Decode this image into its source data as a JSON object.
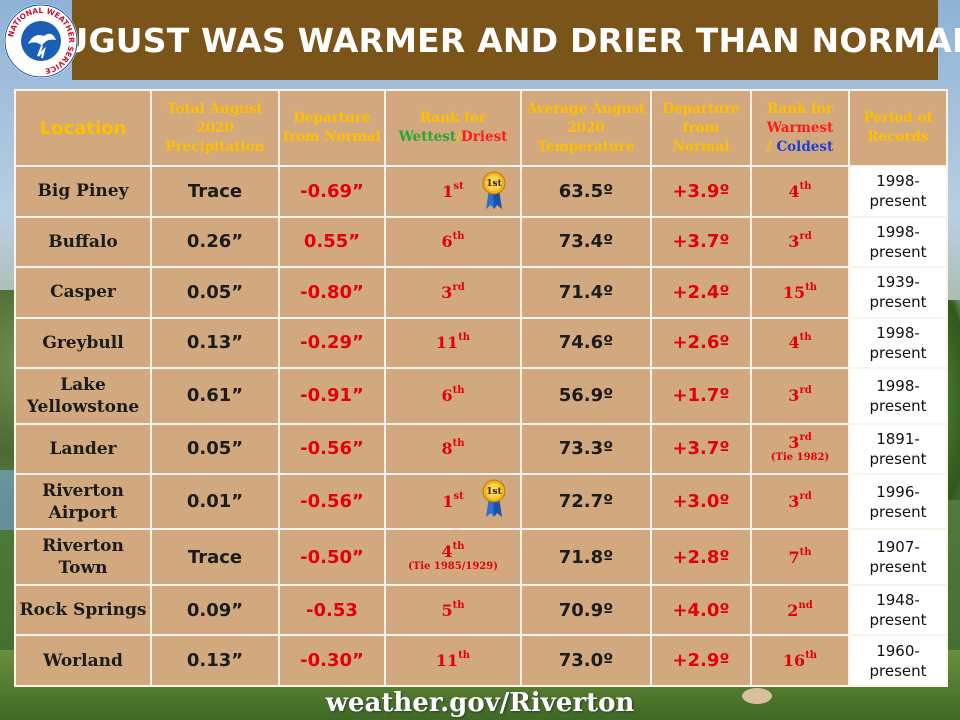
{
  "title": "AUGUST WAS WARMER AND DRIER THAN NORMAL",
  "logo_text": "NATIONAL WEATHER SERVICE",
  "footer": "weather.gov/Riverton",
  "headers": {
    "location": "Location",
    "total_precip": "Total August 2020 Precipitation",
    "departure": "Departure from Normal",
    "rank_wet_prefix": "Rank for",
    "rank_wet_wettest": "Wettest",
    "rank_wet_sep": "/",
    "rank_wet_driest": "Driest",
    "avg_temp": "Average August 2020 Temperature",
    "temp_departure": "Departure from Normal",
    "rank_warm_prefix": "Rank for",
    "rank_warm_warmest": "Warmest",
    "rank_warm_sep": "/",
    "rank_warm_coldest": "Coldest",
    "period": "Period of Records"
  },
  "rows": [
    {
      "location": "Big Piney",
      "precip": "Trace",
      "departure": "-0.69”",
      "rank_wet": "1",
      "rank_wet_suffix": "st",
      "rank_wet_note": "",
      "ribbon": true,
      "ribbon_label": "1st",
      "temp": "63.5º",
      "temp_departure": "+3.9º",
      "rank_warm": "4",
      "rank_warm_suffix": "th",
      "rank_warm_note": "",
      "period_1": "1998-",
      "period_2": "present"
    },
    {
      "location": "Buffalo",
      "precip": "0.26”",
      "departure": "0.55”",
      "rank_wet": "6",
      "rank_wet_suffix": "th",
      "rank_wet_note": "",
      "ribbon": false,
      "ribbon_label": "",
      "temp": "73.4º",
      "temp_departure": "+3.7º",
      "rank_warm": "3",
      "rank_warm_suffix": "rd",
      "rank_warm_note": "",
      "period_1": "1998-",
      "period_2": "present"
    },
    {
      "location": "Casper",
      "precip": "0.05”",
      "departure": "-0.80”",
      "rank_wet": "3",
      "rank_wet_suffix": "rd",
      "rank_wet_note": "",
      "ribbon": false,
      "ribbon_label": "",
      "temp": "71.4º",
      "temp_departure": "+2.4º",
      "rank_warm": "15",
      "rank_warm_suffix": "th",
      "rank_warm_note": "",
      "period_1": "1939-",
      "period_2": "present"
    },
    {
      "location": "Greybull",
      "precip": "0.13”",
      "departure": "-0.29”",
      "rank_wet": "11",
      "rank_wet_suffix": "th",
      "rank_wet_note": "",
      "ribbon": false,
      "ribbon_label": "",
      "temp": "74.6º",
      "temp_departure": "+2.6º",
      "rank_warm": "4",
      "rank_warm_suffix": "th",
      "rank_warm_note": "",
      "period_1": "1998-",
      "period_2": "present"
    },
    {
      "location": "Lake Yellowstone",
      "precip": "0.61”",
      "departure": "-0.91”",
      "rank_wet": "6",
      "rank_wet_suffix": "th",
      "rank_wet_note": "",
      "ribbon": false,
      "ribbon_label": "",
      "temp": "56.9º",
      "temp_departure": "+1.7º",
      "rank_warm": "3",
      "rank_warm_suffix": "rd",
      "rank_warm_note": "",
      "period_1": "1998-",
      "period_2": "present"
    },
    {
      "location": "Lander",
      "precip": "0.05”",
      "departure": "-0.56”",
      "rank_wet": "8",
      "rank_wet_suffix": "th",
      "rank_wet_note": "",
      "ribbon": false,
      "ribbon_label": "",
      "temp": "73.3º",
      "temp_departure": "+3.7º",
      "rank_warm": "3",
      "rank_warm_suffix": "rd",
      "rank_warm_note": "(Tie 1982)",
      "period_1": "1891-",
      "period_2": "present"
    },
    {
      "location": "Riverton Airport",
      "precip": "0.01”",
      "departure": "-0.56”",
      "rank_wet": "1",
      "rank_wet_suffix": "st",
      "rank_wet_note": "",
      "ribbon": true,
      "ribbon_label": "1st",
      "temp": "72.7º",
      "temp_departure": "+3.0º",
      "rank_warm": "3",
      "rank_warm_suffix": "rd",
      "rank_warm_note": "",
      "period_1": "1996-",
      "period_2": "present"
    },
    {
      "location": "Riverton Town",
      "precip": "Trace",
      "departure": "-0.50”",
      "rank_wet": "4",
      "rank_wet_suffix": "th",
      "rank_wet_note": "(Tie 1985/1929)",
      "ribbon": false,
      "ribbon_label": "",
      "temp": "71.8º",
      "temp_departure": "+2.8º",
      "rank_warm": "7",
      "rank_warm_suffix": "th",
      "rank_warm_note": "",
      "period_1": "1907-",
      "period_2": "present"
    },
    {
      "location": "Rock Springs",
      "precip": "0.09”",
      "departure": "-0.53",
      "rank_wet": "5",
      "rank_wet_suffix": "th",
      "rank_wet_note": "",
      "ribbon": false,
      "ribbon_label": "",
      "temp": "70.9º",
      "temp_departure": "+4.0º",
      "rank_warm": "2",
      "rank_warm_suffix": "nd",
      "rank_warm_note": "",
      "period_1": "1948-",
      "period_2": "present"
    },
    {
      "location": "Worland",
      "precip": "0.13”",
      "departure": "-0.30”",
      "rank_wet": "11",
      "rank_wet_suffix": "th",
      "rank_wet_note": "",
      "ribbon": false,
      "ribbon_label": "",
      "temp": "73.0º",
      "temp_departure": "+2.9º",
      "rank_warm": "16",
      "rank_warm_suffix": "th",
      "rank_warm_note": "",
      "period_1": "1960-",
      "period_2": "present"
    }
  ],
  "colors": {
    "title_bg": "#7a5418",
    "cell_bg": "#d2a97e",
    "header_text": "#ffc000",
    "value_red": "#e2000a",
    "wettest_green": "#2aa534",
    "coldest_blue": "#1c3fd6"
  }
}
